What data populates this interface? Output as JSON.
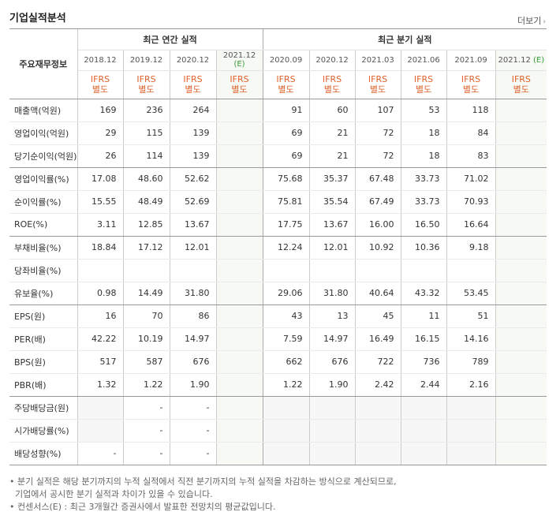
{
  "title": "기업실적분석",
  "more": "더보기",
  "row_header": "주요재무정보",
  "groups": {
    "annual": "최근 연간 실적",
    "quarter": "최근 분기 실적"
  },
  "periods": [
    "2018.12",
    "2019.12",
    "2020.12",
    "2021.12",
    "2020.09",
    "2020.12",
    "2021.03",
    "2021.06",
    "2021.09",
    "2021.12"
  ],
  "estimate_mark": "(E)",
  "ifrs_label": "IFRS",
  "ifrs_sub": "별도",
  "rows": [
    {
      "label": "매출액(억원)",
      "values": [
        "169",
        "236",
        "264",
        "",
        "91",
        "60",
        "107",
        "53",
        "118",
        ""
      ]
    },
    {
      "label": "영업이익(억원)",
      "values": [
        "29",
        "115",
        "139",
        "",
        "69",
        "21",
        "72",
        "18",
        "84",
        ""
      ]
    },
    {
      "label": "당기순이익(억원)",
      "values": [
        "26",
        "114",
        "139",
        "",
        "69",
        "21",
        "72",
        "18",
        "83",
        ""
      ]
    },
    {
      "label": "영업이익률(%)",
      "values": [
        "17.08",
        "48.60",
        "52.62",
        "",
        "75.68",
        "35.37",
        "67.48",
        "33.73",
        "71.02",
        ""
      ]
    },
    {
      "label": "순이익률(%)",
      "values": [
        "15.55",
        "48.49",
        "52.69",
        "",
        "75.81",
        "35.54",
        "67.49",
        "33.73",
        "70.93",
        ""
      ]
    },
    {
      "label": "ROE(%)",
      "values": [
        "3.11",
        "12.85",
        "13.67",
        "",
        "17.75",
        "13.67",
        "16.00",
        "16.50",
        "16.64",
        ""
      ]
    },
    {
      "label": "부채비율(%)",
      "values": [
        "18.84",
        "17.12",
        "12.01",
        "",
        "12.24",
        "12.01",
        "10.92",
        "10.36",
        "9.18",
        ""
      ]
    },
    {
      "label": "당좌비율(%)",
      "values": [
        "",
        "",
        "",
        "",
        "",
        "",
        "",
        "",
        "",
        ""
      ]
    },
    {
      "label": "유보율(%)",
      "values": [
        "0.98",
        "14.49",
        "31.80",
        "",
        "29.06",
        "31.80",
        "40.64",
        "43.32",
        "53.45",
        ""
      ]
    },
    {
      "label": "EPS(원)",
      "values": [
        "16",
        "70",
        "86",
        "",
        "43",
        "13",
        "45",
        "11",
        "51",
        ""
      ]
    },
    {
      "label": "PER(배)",
      "values": [
        "42.22",
        "10.19",
        "14.97",
        "",
        "7.59",
        "14.97",
        "16.49",
        "16.15",
        "14.16",
        ""
      ]
    },
    {
      "label": "BPS(원)",
      "values": [
        "517",
        "587",
        "676",
        "",
        "662",
        "676",
        "722",
        "736",
        "789",
        ""
      ]
    },
    {
      "label": "PBR(배)",
      "values": [
        "1.32",
        "1.22",
        "1.90",
        "",
        "1.22",
        "1.90",
        "2.42",
        "2.44",
        "2.16",
        ""
      ]
    },
    {
      "label": "주당배당금(원)",
      "values": [
        "",
        "-",
        "-",
        "",
        "",
        "",
        "",
        "",
        "",
        ""
      ]
    },
    {
      "label": "시가배당률(%)",
      "values": [
        "",
        "-",
        "-",
        "",
        "",
        "",
        "",
        "",
        "",
        ""
      ]
    },
    {
      "label": "배당성향(%)",
      "values": [
        "-",
        "-",
        "-",
        "",
        "",
        "",
        "",
        "",
        "",
        ""
      ]
    }
  ],
  "notes": [
    "분기 실적은 해당 분기까지의 누적 실적에서 직전 분기까지의 누적 실적을 차감하는 방식으로 계산되므로,",
    "기업에서 공시한 분기 실적과 차이가 있을 수 있습니다.",
    "컨센서스(E) : 최근 3개월간 증권사에서 발표한 전망치의 평균값입니다."
  ]
}
